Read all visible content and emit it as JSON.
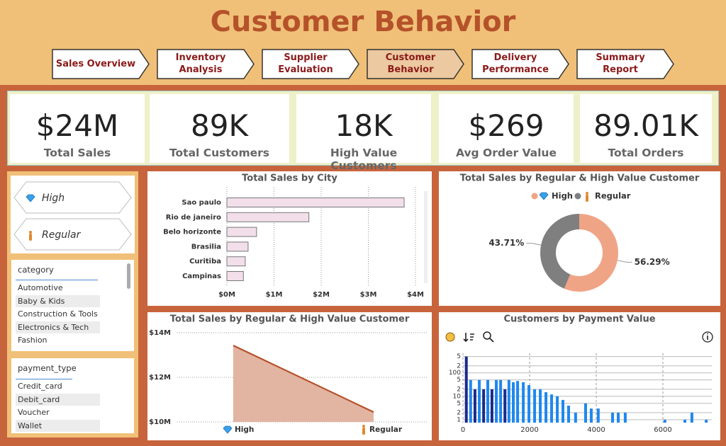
{
  "header": {
    "title": "Customer Behavior"
  },
  "nav": {
    "items": [
      "Sales Overview",
      "Inventory Analysis",
      "Supplier Evaluation",
      "Customer Behavior",
      "Delivery Performance",
      "Summary Report"
    ],
    "active": 3
  },
  "kpis": [
    {
      "value": "$24M",
      "label": "Total Sales"
    },
    {
      "value": "89K",
      "label": "Total Customers"
    },
    {
      "value": "18K",
      "label": "High Value Customers"
    },
    {
      "value": "$269",
      "label": "Avg Order Value"
    },
    {
      "value": "89.01K",
      "label": "Total Orders"
    }
  ],
  "slicers": {
    "segments": [
      "High",
      "Regular"
    ],
    "category": {
      "title": "category",
      "items": [
        "Automotive",
        "Baby & Kids",
        "Construction & Tools",
        "Electronics & Tech",
        "Fashion"
      ]
    },
    "payment_type": {
      "title": "payment_type",
      "items": [
        "Credit_card",
        "Debit_card",
        "Voucher",
        "Wallet"
      ]
    }
  },
  "chart_data": [
    {
      "type": "bar",
      "title": "Total Sales by City",
      "categories": [
        "Sao paulo",
        "Rio de janeiro",
        "Belo horizonte",
        "Brasilia",
        "Curitiba",
        "Campinas"
      ],
      "values": [
        3.76,
        1.74,
        0.63,
        0.45,
        0.39,
        0.35
      ],
      "color": "#f2dfea",
      "xlim": [
        0,
        4
      ],
      "xticks": [
        {
          "value": 0,
          "label": "$0M"
        },
        {
          "value": 1,
          "label": "$1M"
        },
        {
          "value": 2,
          "label": "$2M"
        },
        {
          "value": 3,
          "label": "$3M"
        },
        {
          "value": 4,
          "label": "$4M"
        }
      ],
      "grid": true
    },
    {
      "type": "donut",
      "title": "Total Sales by Regular & High Value Customer",
      "categories": [
        "High",
        "Regular"
      ],
      "values": [
        56.29,
        43.71
      ],
      "value_labels": [
        "56.29%",
        "43.71%"
      ],
      "colors": [
        "#f0a486",
        "#7f7f7f"
      ]
    },
    {
      "type": "area",
      "title": "Total Sales by Regular & High Value Customer",
      "categories": [
        "High",
        "Regular"
      ],
      "values": [
        13.43,
        10.44
      ],
      "color": "#b5522a",
      "fill": "#e2b4a2",
      "ylim": [
        10,
        14
      ],
      "yticks": [
        {
          "value": 10,
          "label": "$10M"
        },
        {
          "value": 12,
          "label": "$12M"
        },
        {
          "value": 14,
          "label": "$14M"
        }
      ],
      "grid": true
    },
    {
      "type": "column",
      "title": "Customers by Payment Value",
      "x": [
        100,
        230,
        360,
        490,
        620,
        745,
        870,
        1000,
        1130,
        1260,
        1380,
        1510,
        1640,
        1810,
        1980,
        2150,
        2320,
        2490,
        2660,
        2830,
        3000,
        3170,
        3380,
        3680,
        3850,
        4060,
        4490,
        4660,
        4870,
        6060,
        6660,
        6870,
        7300
      ],
      "values": [
        500,
        50,
        20,
        50,
        20,
        50,
        20,
        50,
        50,
        20,
        50,
        40,
        45,
        40,
        30,
        20,
        20,
        15,
        12,
        10,
        7,
        4,
        2,
        5,
        3,
        3,
        2,
        2,
        2,
        1,
        1,
        2,
        1
      ],
      "colors": [
        "#1a2a8a",
        "#1e88f0",
        "#1a2a8a",
        "#1e88f0",
        "#1a2a8a",
        "#1e88f0",
        "#1a2a8a",
        "#1e88f0",
        "#1e88f0",
        "#1a2a8a",
        "#1e88f0",
        "#1e88f0",
        "#1e88f0",
        "#1e88f0",
        "#1e88f0",
        "#1e88f0",
        "#1e88f0",
        "#1e88f0",
        "#1e88f0",
        "#1e88f0",
        "#1e88f0",
        "#1e88f0",
        "#1e88f0",
        "#1e88f0",
        "#1e88f0",
        "#1e88f0",
        "#1e88f0",
        "#1e88f0",
        "#1e88f0",
        "#1e88f0",
        "#1e88f0",
        "#1e88f0",
        "#1e88f0"
      ],
      "xlim": [
        0,
        7400
      ],
      "xticks": [
        0,
        2000,
        4000,
        6000
      ],
      "ylim": [
        0.75,
        600
      ],
      "log_y": true,
      "yticks": [
        1,
        2,
        5,
        10,
        {
          "value": 20,
          "label": "2"
        },
        {
          "value": 50,
          "label": "5"
        },
        100,
        {
          "value": 200,
          "label": "2"
        },
        {
          "value": 500,
          "label": "5"
        }
      ],
      "grid": true
    }
  ]
}
